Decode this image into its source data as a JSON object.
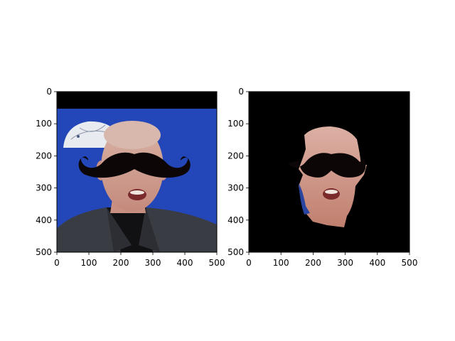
{
  "chart_data": [
    {
      "type": "image",
      "content": "person-face-with-mustache-overlay",
      "x_ticks": [
        "0",
        "100",
        "200",
        "300",
        "400",
        "500"
      ],
      "y_ticks": [
        "0",
        "100",
        "200",
        "300",
        "400",
        "500"
      ],
      "xlim": [
        0,
        500
      ],
      "ylim": [
        500,
        0
      ],
      "background_color": "#2347b8",
      "mustache_color": "#0c0606"
    },
    {
      "type": "image",
      "content": "segmented-face-with-mustache-on-black",
      "x_ticks": [
        "0",
        "100",
        "200",
        "300",
        "400",
        "500"
      ],
      "y_ticks": [
        "0",
        "100",
        "200",
        "300",
        "400",
        "500"
      ],
      "xlim": [
        0,
        500
      ],
      "ylim": [
        500,
        0
      ],
      "background_color": "#000000",
      "mustache_color": "#0c0606"
    }
  ]
}
